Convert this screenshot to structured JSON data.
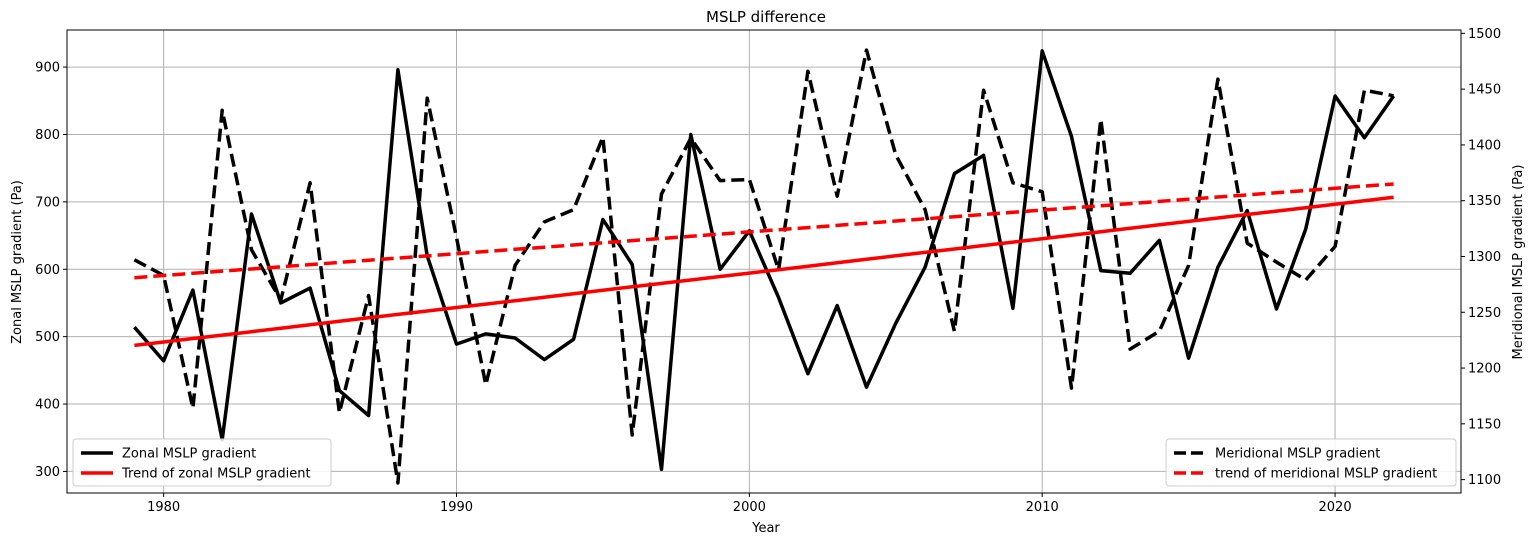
{
  "chart_data": {
    "type": "line",
    "title": "MSLP difference",
    "xlabel": "Year",
    "ylabel_left": "Zonal MSLP gradient (Pa)",
    "ylabel_right": "Meridional MSLP gradient (Pa)",
    "xlim": [
      1976.7,
      2024.3
    ],
    "ylim_left": [
      268,
      955
    ],
    "ylim_right": [
      1088,
      1503
    ],
    "xticks": [
      1980,
      1990,
      2000,
      2010,
      2020
    ],
    "yticks_left": [
      300,
      400,
      500,
      600,
      700,
      800,
      900
    ],
    "yticks_right": [
      1100,
      1150,
      1200,
      1250,
      1300,
      1350,
      1400,
      1450,
      1500
    ],
    "grid": true,
    "x": [
      1979,
      1980,
      1981,
      1982,
      1983,
      1984,
      1985,
      1986,
      1987,
      1988,
      1989,
      1990,
      1991,
      1992,
      1993,
      1994,
      1995,
      1996,
      1997,
      1998,
      1999,
      2000,
      2001,
      2002,
      2003,
      2004,
      2005,
      2006,
      2007,
      2008,
      2009,
      2010,
      2011,
      2012,
      2013,
      2014,
      2015,
      2016,
      2017,
      2018,
      2019,
      2020,
      2021,
      2022
    ],
    "series": [
      {
        "name": "Zonal MSLP gradient",
        "axis": "left",
        "color": "#000000",
        "style": "solid",
        "values": [
          514,
          464,
          569,
          347,
          682,
          550,
          572,
          420,
          383,
          896,
          620,
          489,
          504,
          498,
          466,
          496,
          674,
          607,
          303,
          800,
          600,
          657,
          558,
          445,
          546,
          425,
          520,
          603,
          742,
          769,
          542,
          924,
          797,
          598,
          594,
          643,
          468,
          603,
          687,
          541,
          660,
          857,
          795,
          857
        ]
      },
      {
        "name": "Trend of zonal MSLP gradient",
        "axis": "left",
        "color": "#ff0000",
        "style": "solid",
        "values": [
          487,
          492.1,
          497.2,
          502.3,
          507.4,
          512.6,
          517.7,
          522.8,
          527.9,
          533,
          538.1,
          543.2,
          548.3,
          553.4,
          558.5,
          563.7,
          568.8,
          573.9,
          579,
          584.1,
          589.2,
          594.3,
          599.4,
          604.5,
          609.6,
          614.8,
          619.9,
          625,
          630.1,
          635.2,
          640.3,
          645.4,
          650.5,
          655.6,
          660.7,
          665.9,
          671,
          676.1,
          681.2,
          686.3,
          691.4,
          696.5,
          701.6,
          706.7
        ]
      },
      {
        "name": "Meridional MSLP gradient",
        "axis": "right",
        "color": "#000000",
        "style": "dashed",
        "values": [
          1297,
          1283,
          1164,
          1431,
          1306,
          1261,
          1366,
          1160,
          1265,
          1097,
          1442,
          1317,
          1185,
          1292,
          1331,
          1342,
          1407,
          1140,
          1356,
          1406,
          1368,
          1369,
          1288,
          1466,
          1354,
          1485,
          1391,
          1342,
          1233,
          1449,
          1366,
          1358,
          1182,
          1423,
          1217,
          1233,
          1292,
          1459,
          1312,
          1295,
          1279,
          1309,
          1449,
          1444
        ]
      },
      {
        "name": "trend of meridional MSLP gradient",
        "axis": "right",
        "color": "#ff0000",
        "style": "dashed",
        "values": [
          1281,
          1282.95,
          1284.91,
          1286.86,
          1288.81,
          1290.77,
          1292.72,
          1294.67,
          1296.63,
          1298.58,
          1300.53,
          1302.49,
          1304.44,
          1306.4,
          1308.35,
          1310.3,
          1312.26,
          1314.21,
          1316.16,
          1318.12,
          1320.07,
          1322.02,
          1323.98,
          1325.93,
          1327.88,
          1329.84,
          1331.79,
          1333.74,
          1335.7,
          1337.65,
          1339.6,
          1341.56,
          1343.51,
          1345.47,
          1347.42,
          1349.37,
          1351.33,
          1353.28,
          1355.23,
          1357.19,
          1359.14,
          1361.09,
          1363.05,
          1365
        ]
      }
    ],
    "legends": [
      {
        "placement": "lower-left",
        "entries": [
          "Zonal MSLP gradient",
          "Trend of zonal MSLP gradient"
        ]
      },
      {
        "placement": "lower-right",
        "entries": [
          "Meridional MSLP gradient",
          "trend of meridional MSLP gradient"
        ]
      }
    ]
  }
}
